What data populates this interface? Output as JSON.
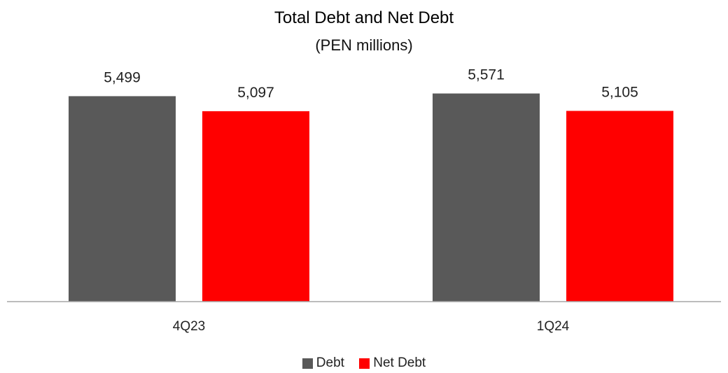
{
  "chart_data": {
    "type": "bar",
    "title": "Total Debt and Net Debt",
    "subtitle": "(PEN millions)",
    "categories": [
      "4Q23",
      "1Q24"
    ],
    "series": [
      {
        "name": "Debt",
        "values": [
          5499,
          5571
        ],
        "value_labels": [
          "5,499",
          "5,571"
        ],
        "color": "#595959"
      },
      {
        "name": "Net Debt",
        "values": [
          5097,
          5105
        ],
        "value_labels": [
          "5,097",
          "5,105"
        ],
        "color": "#ff0000"
      }
    ],
    "ylim": [
      0,
      6200
    ],
    "grid": false,
    "legend_position": "bottom"
  }
}
